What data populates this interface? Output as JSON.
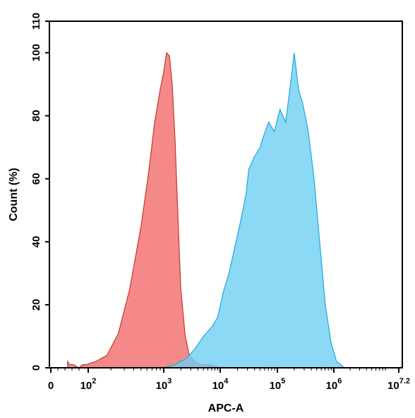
{
  "chart_data": {
    "type": "area",
    "title": "",
    "xlabel": "APC-A",
    "ylabel": "Count (%)",
    "x_scale": "biexponential",
    "x_ticks": [
      {
        "base": "0",
        "exp": ""
      },
      {
        "base": "10",
        "exp": "2"
      },
      {
        "base": "10",
        "exp": "3"
      },
      {
        "base": "10",
        "exp": "4"
      },
      {
        "base": "10",
        "exp": "5"
      },
      {
        "base": "10",
        "exp": "6"
      },
      {
        "base": "10",
        "exp": "7.2"
      }
    ],
    "y_ticks": [
      "0",
      "20",
      "40",
      "60",
      "80",
      "100",
      "110"
    ],
    "ylim": [
      0,
      110
    ],
    "grid": false,
    "series": [
      {
        "color": "#f26b6b",
        "stroke": "#c0392b",
        "x_log10": [
          0.9,
          1.0,
          1.2,
          1.5,
          1.7,
          1.9,
          2.1,
          2.25,
          2.4,
          2.55,
          2.7,
          2.8,
          2.88,
          2.95,
          3.0,
          3.05,
          3.1,
          3.15,
          3.2,
          3.25,
          3.3,
          3.38,
          3.45,
          3.55,
          3.65,
          3.8,
          4.0,
          4.3,
          4.6,
          5.0
        ],
        "y": [
          2,
          1,
          1,
          0,
          1,
          1,
          2,
          4,
          11,
          25,
          45,
          62,
          78,
          88,
          94,
          100,
          99,
          90,
          72,
          48,
          25,
          10,
          4,
          2,
          1,
          1,
          0,
          0,
          0,
          0
        ]
      },
      {
        "color": "#6fd0f2",
        "stroke": "#1fa8d8",
        "x_log10": [
          3.0,
          3.2,
          3.4,
          3.55,
          3.7,
          3.85,
          3.95,
          4.05,
          4.15,
          4.25,
          4.35,
          4.45,
          4.5,
          4.6,
          4.7,
          4.75,
          4.85,
          4.95,
          5.05,
          5.15,
          5.25,
          5.3,
          5.38,
          5.45,
          5.55,
          5.65,
          5.75,
          5.85,
          5.95,
          6.05,
          6.2
        ],
        "y": [
          0,
          1,
          3,
          6,
          10,
          13,
          16,
          24,
          30,
          38,
          46,
          55,
          63,
          67,
          70,
          73,
          78,
          75,
          82,
          78,
          92,
          100,
          88,
          84,
          75,
          60,
          40,
          20,
          8,
          2,
          0
        ]
      }
    ]
  }
}
